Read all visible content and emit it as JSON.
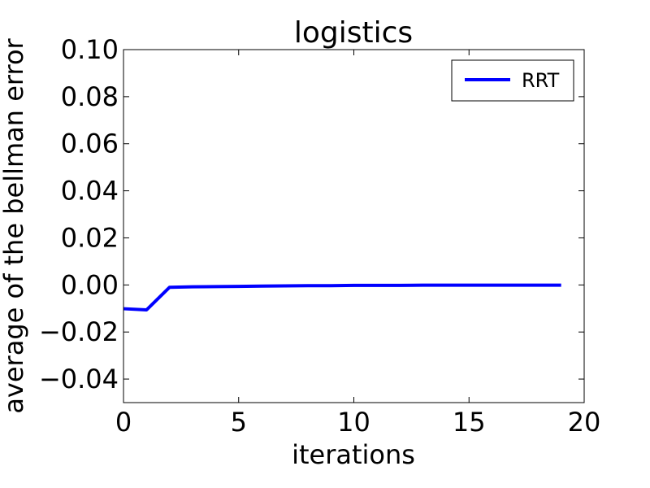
{
  "chart_data": {
    "type": "line",
    "title": "logistics",
    "xlabel": "iterations",
    "ylabel": "average of the bellman error",
    "xlim": [
      0,
      20
    ],
    "ylim": [
      -0.05,
      0.1
    ],
    "xticks": [
      0,
      5,
      10,
      15,
      20
    ],
    "xtick_labels": [
      "0",
      "5",
      "10",
      "15",
      "20"
    ],
    "yticks": [
      -0.04,
      -0.02,
      0.0,
      0.02,
      0.04,
      0.06,
      0.08,
      0.1
    ],
    "ytick_labels": [
      "−0.04",
      "−0.02",
      "0.00",
      "0.02",
      "0.04",
      "0.06",
      "0.08",
      "0.10"
    ],
    "grid": false,
    "legend_position": "top-right",
    "series": [
      {
        "name": "RRT",
        "color": "#0000ff",
        "x": [
          0,
          1,
          2,
          3,
          4,
          5,
          6,
          7,
          8,
          9,
          10,
          11,
          12,
          13,
          14,
          15,
          16,
          17,
          18,
          19
        ],
        "y": [
          -0.0101,
          -0.0106,
          -0.001,
          -0.0008,
          -0.0007,
          -0.0006,
          -0.0005,
          -0.0004,
          -0.0003,
          -0.0003,
          -0.0002,
          -0.0002,
          -0.0002,
          -0.0001,
          -0.0001,
          -0.0001,
          -0.0001,
          -0.0001,
          -0.0001,
          -0.0001
        ]
      }
    ]
  }
}
